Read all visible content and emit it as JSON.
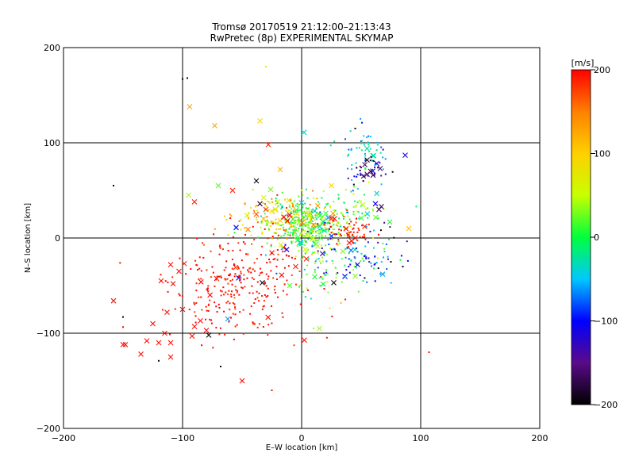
{
  "chart_data": {
    "type": "scatter",
    "title": "Tromsø 20170519 21:12:00–21:13:43",
    "subtitle": "RwPretec (8p) EXPERIMENTAL SKYMAP",
    "xlabel": "E–W location [km]",
    "ylabel": "N–S location [km]",
    "xlim": [
      -200,
      200
    ],
    "ylim": [
      -200,
      200
    ],
    "xticks": [
      -200,
      -100,
      0,
      100,
      200
    ],
    "yticks": [
      -200,
      -100,
      0,
      100,
      200
    ],
    "xtick_labels": [
      "−200",
      "−100",
      "0",
      "100",
      "200"
    ],
    "ytick_labels": [
      "−200",
      "−100",
      "0",
      "100",
      "200"
    ],
    "grid": true,
    "colorbar": {
      "label": "[m/s]",
      "range": [
        -200,
        200
      ],
      "ticks": [
        200,
        100,
        0,
        -100,
        -200
      ],
      "tick_labels": [
        "200",
        "100",
        "0",
        "−100",
        "−200"
      ],
      "colors": [
        "#000000",
        "#5a0a8a",
        "#0000ff",
        "#00c8ff",
        "#00ff3c",
        "#c8ff00",
        "#ffd000",
        "#ff8000",
        "#ff0000"
      ]
    },
    "points": [
      {
        "x": -100,
        "y": 167,
        "v": -195,
        "m": "dot"
      },
      {
        "x": -96,
        "y": 168,
        "v": -195,
        "m": "dot"
      },
      {
        "x": -94,
        "y": 138,
        "v": 125,
        "m": "x"
      },
      {
        "x": -73,
        "y": 118,
        "v": 125,
        "m": "x"
      },
      {
        "x": -35,
        "y": 123,
        "v": 95,
        "m": "x"
      },
      {
        "x": -30,
        "y": 180,
        "v": 60,
        "m": "dot"
      },
      {
        "x": -158,
        "y": 55,
        "v": -195,
        "m": "dot"
      },
      {
        "x": -28,
        "y": 98,
        "v": 185,
        "m": "x"
      },
      {
        "x": -18,
        "y": 72,
        "v": 120,
        "m": "x"
      },
      {
        "x": 2,
        "y": 111,
        "v": -40,
        "m": "x"
      },
      {
        "x": 45,
        "y": 115,
        "v": -190,
        "m": "dot"
      },
      {
        "x": 55,
        "y": 82,
        "v": -195,
        "m": "x"
      },
      {
        "x": 58,
        "y": 70,
        "v": -175,
        "m": "x"
      },
      {
        "x": 55,
        "y": 67,
        "v": -165,
        "m": "x"
      },
      {
        "x": 60,
        "y": 66,
        "v": -165,
        "m": "x"
      },
      {
        "x": 52,
        "y": 65,
        "v": -160,
        "m": "x"
      },
      {
        "x": 66,
        "y": 73,
        "v": -160,
        "m": "x"
      },
      {
        "x": 87,
        "y": 87,
        "v": -110,
        "m": "x"
      },
      {
        "x": 55,
        "y": 94,
        "v": -30,
        "m": "x"
      },
      {
        "x": 62,
        "y": 36,
        "v": -100,
        "m": "x"
      },
      {
        "x": 67,
        "y": 33,
        "v": -170,
        "m": "x"
      },
      {
        "x": 65,
        "y": 30,
        "v": -170,
        "m": "x"
      },
      {
        "x": -90,
        "y": 38,
        "v": 190,
        "m": "x"
      },
      {
        "x": -58,
        "y": 50,
        "v": 190,
        "m": "x"
      },
      {
        "x": -95,
        "y": 45,
        "v": 40,
        "m": "x"
      },
      {
        "x": -70,
        "y": 55,
        "v": 20,
        "m": "x"
      },
      {
        "x": -38,
        "y": 60,
        "v": -195,
        "m": "x"
      },
      {
        "x": -26,
        "y": 51,
        "v": 30,
        "m": "x"
      },
      {
        "x": -15,
        "y": 22,
        "v": 200,
        "m": "x"
      },
      {
        "x": -10,
        "y": 24,
        "v": 200,
        "m": "x"
      },
      {
        "x": -12,
        "y": 18,
        "v": 200,
        "m": "x"
      },
      {
        "x": 42,
        "y": -3,
        "v": 195,
        "m": "x"
      },
      {
        "x": 40,
        "y": -5,
        "v": 195,
        "m": "x"
      },
      {
        "x": 45,
        "y": 0,
        "v": 195,
        "m": "x"
      },
      {
        "x": -55,
        "y": 11,
        "v": -100,
        "m": "x"
      },
      {
        "x": -45,
        "y": 9,
        "v": 150,
        "m": "x"
      },
      {
        "x": -32,
        "y": 20,
        "v": 110,
        "m": "x"
      },
      {
        "x": -25,
        "y": 28,
        "v": 90,
        "m": "x"
      },
      {
        "x": -35,
        "y": 36,
        "v": -180,
        "m": "x"
      },
      {
        "x": -38,
        "y": 25,
        "v": 170,
        "m": "x"
      },
      {
        "x": -30,
        "y": 30,
        "v": 180,
        "m": "x"
      },
      {
        "x": -20,
        "y": 38,
        "v": 60,
        "m": "x"
      },
      {
        "x": 25,
        "y": 20,
        "v": 180,
        "m": "x"
      },
      {
        "x": 3,
        "y": -12,
        "v": 50,
        "m": "x"
      },
      {
        "x": 4,
        "y": -22,
        "v": 190,
        "m": "x"
      },
      {
        "x": -5,
        "y": -30,
        "v": 190,
        "m": "x"
      },
      {
        "x": -10,
        "y": -50,
        "v": 20,
        "m": "x"
      },
      {
        "x": 27,
        "y": -47,
        "v": -195,
        "m": "x"
      },
      {
        "x": -33,
        "y": -47,
        "v": -195,
        "m": "x"
      },
      {
        "x": -53,
        "y": -42,
        "v": -110,
        "m": "x"
      },
      {
        "x": -62,
        "y": -85,
        "v": -60,
        "m": "x"
      },
      {
        "x": 45,
        "y": -40,
        "v": 30,
        "m": "x"
      },
      {
        "x": 47,
        "y": -28,
        "v": -120,
        "m": "x"
      },
      {
        "x": 68,
        "y": -38,
        "v": -60,
        "m": "x"
      },
      {
        "x": 85,
        "y": -30,
        "v": -195,
        "m": "dot"
      },
      {
        "x": 75,
        "y": -25,
        "v": -195,
        "m": "dot"
      },
      {
        "x": -110,
        "y": -28,
        "v": 195,
        "m": "x"
      },
      {
        "x": -118,
        "y": -45,
        "v": 195,
        "m": "x"
      },
      {
        "x": -108,
        "y": -48,
        "v": 195,
        "m": "x"
      },
      {
        "x": -103,
        "y": -35,
        "v": 195,
        "m": "x"
      },
      {
        "x": -158,
        "y": -66,
        "v": 195,
        "m": "x"
      },
      {
        "x": -113,
        "y": -78,
        "v": 195,
        "m": "x"
      },
      {
        "x": -125,
        "y": -90,
        "v": 195,
        "m": "x"
      },
      {
        "x": -130,
        "y": -108,
        "v": 195,
        "m": "x"
      },
      {
        "x": -115,
        "y": -100,
        "v": 195,
        "m": "x"
      },
      {
        "x": -110,
        "y": -110,
        "v": 195,
        "m": "x"
      },
      {
        "x": -120,
        "y": -110,
        "v": 195,
        "m": "x"
      },
      {
        "x": -148,
        "y": -112,
        "v": 195,
        "m": "x"
      },
      {
        "x": -150,
        "y": -112,
        "v": 195,
        "m": "x"
      },
      {
        "x": -135,
        "y": -122,
        "v": 195,
        "m": "x"
      },
      {
        "x": -110,
        "y": -125,
        "v": 195,
        "m": "x"
      },
      {
        "x": -100,
        "y": -75,
        "v": 195,
        "m": "x"
      },
      {
        "x": -85,
        "y": -87,
        "v": 195,
        "m": "x"
      },
      {
        "x": -90,
        "y": -93,
        "v": 195,
        "m": "x"
      },
      {
        "x": -92,
        "y": -103,
        "v": 195,
        "m": "x"
      },
      {
        "x": -80,
        "y": -97,
        "v": 195,
        "m": "x"
      },
      {
        "x": -78,
        "y": -102,
        "v": -195,
        "m": "x"
      },
      {
        "x": -50,
        "y": -150,
        "v": 195,
        "m": "x"
      },
      {
        "x": -68,
        "y": -135,
        "v": -195,
        "m": "dot"
      },
      {
        "x": -150,
        "y": -83,
        "v": -195,
        "m": "dot"
      },
      {
        "x": -120,
        "y": -129,
        "v": -195,
        "m": "dot"
      },
      {
        "x": -25,
        "y": -160,
        "v": 195,
        "m": "dot"
      },
      {
        "x": 107,
        "y": -120,
        "v": 195,
        "m": "dot"
      },
      {
        "x": 15,
        "y": -95,
        "v": 40,
        "m": "x"
      },
      {
        "x": 10,
        "y": -95,
        "v": 40,
        "m": "dot"
      },
      {
        "x": 90,
        "y": 10,
        "v": 110,
        "m": "x"
      },
      {
        "x": 25,
        "y": 55,
        "v": 100,
        "m": "x"
      }
    ],
    "clusters": [
      {
        "cx": -55,
        "cy": -55,
        "sx": 28,
        "sy": 25,
        "n": 230,
        "v": 195,
        "vs": 10
      },
      {
        "cx": -45,
        "cy": -25,
        "sx": 25,
        "sy": 18,
        "n": 60,
        "v": 190,
        "vs": 15
      },
      {
        "cx": 5,
        "cy": 12,
        "sx": 16,
        "sy": 14,
        "n": 340,
        "v": 20,
        "vs": 40
      },
      {
        "cx": -20,
        "cy": 22,
        "sx": 18,
        "sy": 12,
        "n": 140,
        "v": 90,
        "vs": 50
      },
      {
        "cx": 35,
        "cy": 25,
        "sx": 18,
        "sy": 14,
        "n": 90,
        "v": 20,
        "vs": 40
      },
      {
        "cx": 45,
        "cy": -20,
        "sx": 22,
        "sy": 15,
        "n": 110,
        "v": -80,
        "vs": 60
      },
      {
        "cx": 55,
        "cy": 95,
        "sx": 12,
        "sy": 12,
        "n": 45,
        "v": -40,
        "vs": 30
      },
      {
        "cx": 55,
        "cy": 72,
        "sx": 10,
        "sy": 12,
        "n": 40,
        "v": -120,
        "vs": 60
      },
      {
        "cx": 15,
        "cy": -40,
        "sx": 12,
        "sy": 20,
        "n": 40,
        "v": 30,
        "vs": 40
      },
      {
        "cx": 40,
        "cy": 8,
        "sx": 10,
        "sy": 8,
        "n": 50,
        "v": 195,
        "vs": 10
      }
    ]
  }
}
